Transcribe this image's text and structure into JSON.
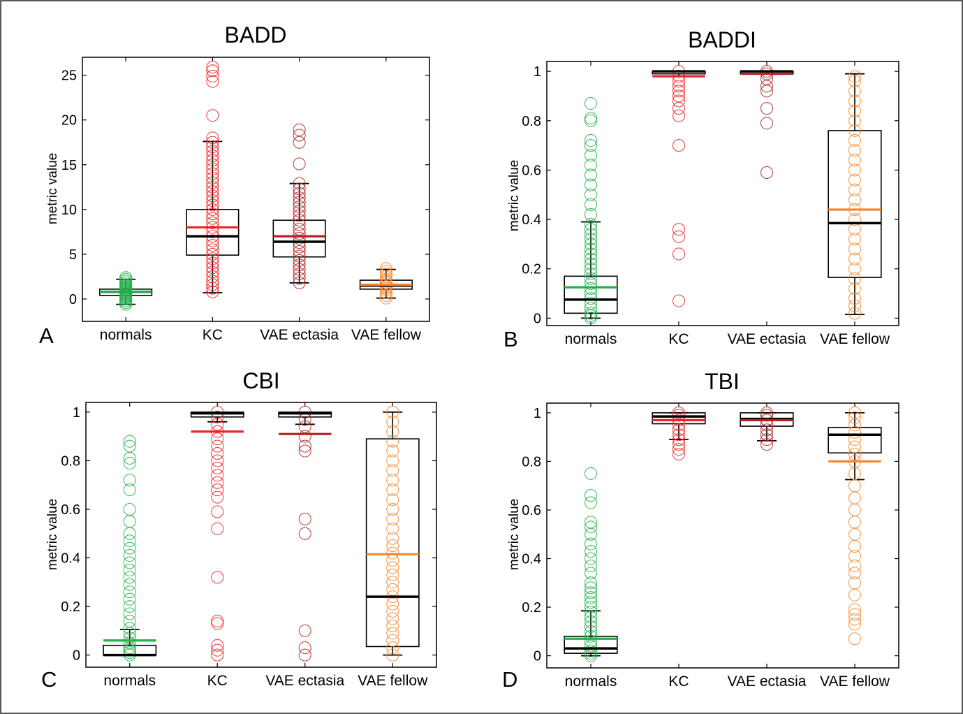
{
  "colors": {
    "normals": "#22b14c",
    "KC": "#ee2424",
    "VAE ectasia": "#b22222",
    "VAE fellow": "#f7862f",
    "box": "#000000",
    "frame": "#000000"
  },
  "chart_data": [
    {
      "type": "box",
      "panel_letter": "A",
      "title": "BADD",
      "ylabel": "metric value",
      "xlabel": "",
      "categories": [
        "normals",
        "KC",
        "VAE ectasia",
        "VAE fellow"
      ],
      "ylim": [
        -2.5,
        27
      ],
      "yticks": [
        0,
        5,
        10,
        15,
        20,
        25
      ],
      "ytick_labels": [
        "0",
        "5",
        "10",
        "15",
        "20",
        "25"
      ],
      "grid": false,
      "boxes": [
        {
          "category": "normals",
          "whisker_low": -0.6,
          "q1": 0.4,
          "median": 0.8,
          "q3": 1.1,
          "whisker_high": 2.2,
          "mean": 0.8,
          "points": [
            -0.6,
            -0.4,
            -0.2,
            0.0,
            0.1,
            0.2,
            0.3,
            0.4,
            0.5,
            0.6,
            0.7,
            0.8,
            0.9,
            1.0,
            1.1,
            1.2,
            1.3,
            1.4,
            1.5,
            1.6,
            1.8,
            2.0,
            2.2,
            2.4
          ]
        },
        {
          "category": "KC",
          "whisker_low": 0.7,
          "q1": 4.9,
          "median": 7.0,
          "q3": 10.0,
          "whisker_high": 17.6,
          "mean": 8.0,
          "points": [
            0.8,
            1.2,
            1.6,
            2.0,
            2.5,
            3.0,
            3.5,
            4.0,
            4.5,
            5.0,
            5.5,
            6.0,
            6.5,
            7.0,
            7.5,
            8.0,
            8.5,
            9.0,
            9.5,
            10.0,
            10.5,
            11.0,
            11.5,
            12.0,
            12.5,
            13.0,
            13.5,
            14.0,
            14.5,
            15.0,
            15.5,
            16.0,
            16.5,
            17.0,
            17.5,
            18.0,
            20.5,
            24.3,
            24.9,
            25.5,
            25.9
          ]
        },
        {
          "category": "VAE ectasia",
          "whisker_low": 1.8,
          "q1": 4.7,
          "median": 6.4,
          "q3": 8.8,
          "whisker_high": 12.9,
          "mean": 7.0,
          "points": [
            1.8,
            2.3,
            2.8,
            3.3,
            3.8,
            4.3,
            4.8,
            5.3,
            5.8,
            6.3,
            6.8,
            7.3,
            7.8,
            8.3,
            8.8,
            9.3,
            9.8,
            10.3,
            10.8,
            11.3,
            11.8,
            12.3,
            12.9,
            15.1,
            17.5,
            18.3,
            18.9
          ]
        },
        {
          "category": "VAE fellow",
          "whisker_low": 0.1,
          "q1": 1.1,
          "median": 1.5,
          "q3": 2.1,
          "whisker_high": 3.3,
          "mean": 1.6,
          "points": [
            0.1,
            0.4,
            0.7,
            1.0,
            1.2,
            1.4,
            1.6,
            1.8,
            2.0,
            2.2,
            2.5,
            2.8,
            3.1,
            3.4
          ]
        }
      ]
    },
    {
      "type": "box",
      "panel_letter": "B",
      "title": "BADDI",
      "ylabel": "metric value",
      "xlabel": "",
      "categories": [
        "normals",
        "KC",
        "VAE ectasia",
        "VAE fellow"
      ],
      "ylim": [
        -0.03,
        1.04
      ],
      "yticks": [
        0,
        0.2,
        0.4,
        0.6,
        0.8,
        1
      ],
      "ytick_labels": [
        "0",
        "0.2",
        "0.4",
        "0.6",
        "0.8",
        "1"
      ],
      "grid": false,
      "boxes": [
        {
          "category": "normals",
          "whisker_low": 0.0,
          "q1": 0.02,
          "median": 0.075,
          "q3": 0.17,
          "whisker_high": 0.39,
          "mean": 0.125,
          "points": [
            0.0,
            0.01,
            0.02,
            0.04,
            0.06,
            0.08,
            0.1,
            0.12,
            0.14,
            0.16,
            0.18,
            0.2,
            0.22,
            0.24,
            0.26,
            0.28,
            0.3,
            0.32,
            0.34,
            0.36,
            0.38,
            0.42,
            0.46,
            0.5,
            0.54,
            0.58,
            0.62,
            0.66,
            0.7,
            0.72,
            0.8,
            0.81,
            0.87
          ]
        },
        {
          "category": "KC",
          "whisker_low": 0.98,
          "q1": 0.99,
          "median": 1.0,
          "q3": 1.0,
          "whisker_high": 1.0,
          "mean": 0.98,
          "points": [
            0.07,
            0.26,
            0.33,
            0.36,
            0.7,
            0.82,
            0.85,
            0.88,
            0.9,
            0.92,
            0.94,
            0.96,
            0.98,
            1.0
          ]
        },
        {
          "category": "VAE ectasia",
          "whisker_low": 0.99,
          "q1": 0.99,
          "median": 1.0,
          "q3": 1.0,
          "whisker_high": 1.0,
          "mean": 0.99,
          "points": [
            0.59,
            0.79,
            0.85,
            0.92,
            0.94,
            0.97,
            0.99,
            1.0
          ]
        },
        {
          "category": "VAE fellow",
          "whisker_low": 0.015,
          "q1": 0.165,
          "median": 0.385,
          "q3": 0.76,
          "whisker_high": 0.99,
          "mean": 0.44,
          "points": [
            0.02,
            0.05,
            0.08,
            0.12,
            0.16,
            0.2,
            0.24,
            0.28,
            0.32,
            0.36,
            0.4,
            0.44,
            0.48,
            0.52,
            0.56,
            0.6,
            0.64,
            0.68,
            0.72,
            0.76,
            0.8,
            0.84,
            0.88,
            0.92,
            0.96,
            0.98
          ]
        }
      ]
    },
    {
      "type": "box",
      "panel_letter": "C",
      "title": "CBI",
      "ylabel": "metric value",
      "xlabel": "",
      "categories": [
        "normals",
        "KC",
        "VAE ectasia",
        "VAE fellow"
      ],
      "ylim": [
        -0.05,
        1.04
      ],
      "yticks": [
        0,
        0.2,
        0.4,
        0.6,
        0.8,
        1
      ],
      "ytick_labels": [
        "0",
        "0.2",
        "0.4",
        "0.6",
        "0.8",
        "1"
      ],
      "grid": false,
      "boxes": [
        {
          "category": "normals",
          "whisker_low": 0.0,
          "q1": 0.0,
          "median": 0.0,
          "q3": 0.04,
          "whisker_high": 0.105,
          "mean": 0.06,
          "points": [
            0.0,
            0.01,
            0.02,
            0.03,
            0.05,
            0.07,
            0.09,
            0.11,
            0.14,
            0.17,
            0.2,
            0.23,
            0.26,
            0.29,
            0.32,
            0.35,
            0.38,
            0.41,
            0.44,
            0.47,
            0.5,
            0.55,
            0.6,
            0.68,
            0.72,
            0.79,
            0.81,
            0.86,
            0.88
          ]
        },
        {
          "category": "KC",
          "whisker_low": 0.96,
          "q1": 0.98,
          "median": 0.995,
          "q3": 1.0,
          "whisker_high": 1.0,
          "mean": 0.92,
          "points": [
            0.0,
            0.02,
            0.04,
            0.13,
            0.14,
            0.32,
            0.52,
            0.59,
            0.65,
            0.68,
            0.71,
            0.74,
            0.77,
            0.8,
            0.83,
            0.86,
            0.89,
            0.92,
            0.95,
            0.98,
            1.0
          ]
        },
        {
          "category": "VAE ectasia",
          "whisker_low": 0.95,
          "q1": 0.98,
          "median": 0.995,
          "q3": 1.0,
          "whisker_high": 1.0,
          "mean": 0.91,
          "points": [
            0.0,
            0.03,
            0.1,
            0.5,
            0.56,
            0.84,
            0.86,
            0.9,
            0.94,
            0.97,
            1.0
          ]
        },
        {
          "category": "VAE fellow",
          "whisker_low": 0.0,
          "q1": 0.035,
          "median": 0.24,
          "q3": 0.89,
          "whisker_high": 1.0,
          "mean": 0.415,
          "points": [
            0.0,
            0.03,
            0.06,
            0.09,
            0.12,
            0.15,
            0.18,
            0.21,
            0.24,
            0.27,
            0.3,
            0.33,
            0.36,
            0.39,
            0.42,
            0.45,
            0.48,
            0.52,
            0.56,
            0.6,
            0.64,
            0.68,
            0.72,
            0.76,
            0.8,
            0.84,
            0.88,
            0.92,
            0.96,
            1.0
          ]
        }
      ]
    },
    {
      "type": "box",
      "panel_letter": "D",
      "title": "TBI",
      "ylabel": "metric value",
      "xlabel": "",
      "categories": [
        "normals",
        "KC",
        "VAE ectasia",
        "VAE fellow"
      ],
      "ylim": [
        -0.05,
        1.04
      ],
      "yticks": [
        0,
        0.2,
        0.4,
        0.6,
        0.8,
        1
      ],
      "ytick_labels": [
        "0",
        "0.2",
        "0.4",
        "0.6",
        "0.8",
        "1"
      ],
      "grid": false,
      "boxes": [
        {
          "category": "normals",
          "whisker_low": 0.0,
          "q1": 0.01,
          "median": 0.03,
          "q3": 0.08,
          "whisker_high": 0.185,
          "mean": 0.07,
          "points": [
            0.0,
            0.01,
            0.02,
            0.04,
            0.06,
            0.08,
            0.1,
            0.12,
            0.14,
            0.16,
            0.18,
            0.2,
            0.22,
            0.24,
            0.26,
            0.28,
            0.3,
            0.34,
            0.37,
            0.4,
            0.43,
            0.46,
            0.5,
            0.53,
            0.55,
            0.63,
            0.66,
            0.75
          ]
        },
        {
          "category": "KC",
          "whisker_low": 0.89,
          "q1": 0.955,
          "median": 0.985,
          "q3": 1.0,
          "whisker_high": 1.0,
          "mean": 0.97,
          "points": [
            0.83,
            0.85,
            0.87,
            0.89,
            0.91,
            0.93,
            0.95,
            0.97,
            0.99,
            1.0
          ]
        },
        {
          "category": "VAE ectasia",
          "whisker_low": 0.885,
          "q1": 0.945,
          "median": 0.975,
          "q3": 1.0,
          "whisker_high": 1.0,
          "mean": 0.97,
          "points": [
            0.87,
            0.89,
            0.91,
            0.93,
            0.95,
            0.97,
            0.99,
            1.0
          ]
        },
        {
          "category": "VAE fellow",
          "whisker_low": 0.725,
          "q1": 0.835,
          "median": 0.91,
          "q3": 0.94,
          "whisker_high": 1.0,
          "mean": 0.8,
          "points": [
            0.07,
            0.13,
            0.15,
            0.17,
            0.19,
            0.25,
            0.3,
            0.34,
            0.37,
            0.41,
            0.45,
            0.5,
            0.55,
            0.6,
            0.65,
            0.7,
            0.75,
            0.8,
            0.83,
            0.86,
            0.89,
            0.92,
            0.95,
            0.98,
            1.0
          ]
        }
      ]
    }
  ]
}
